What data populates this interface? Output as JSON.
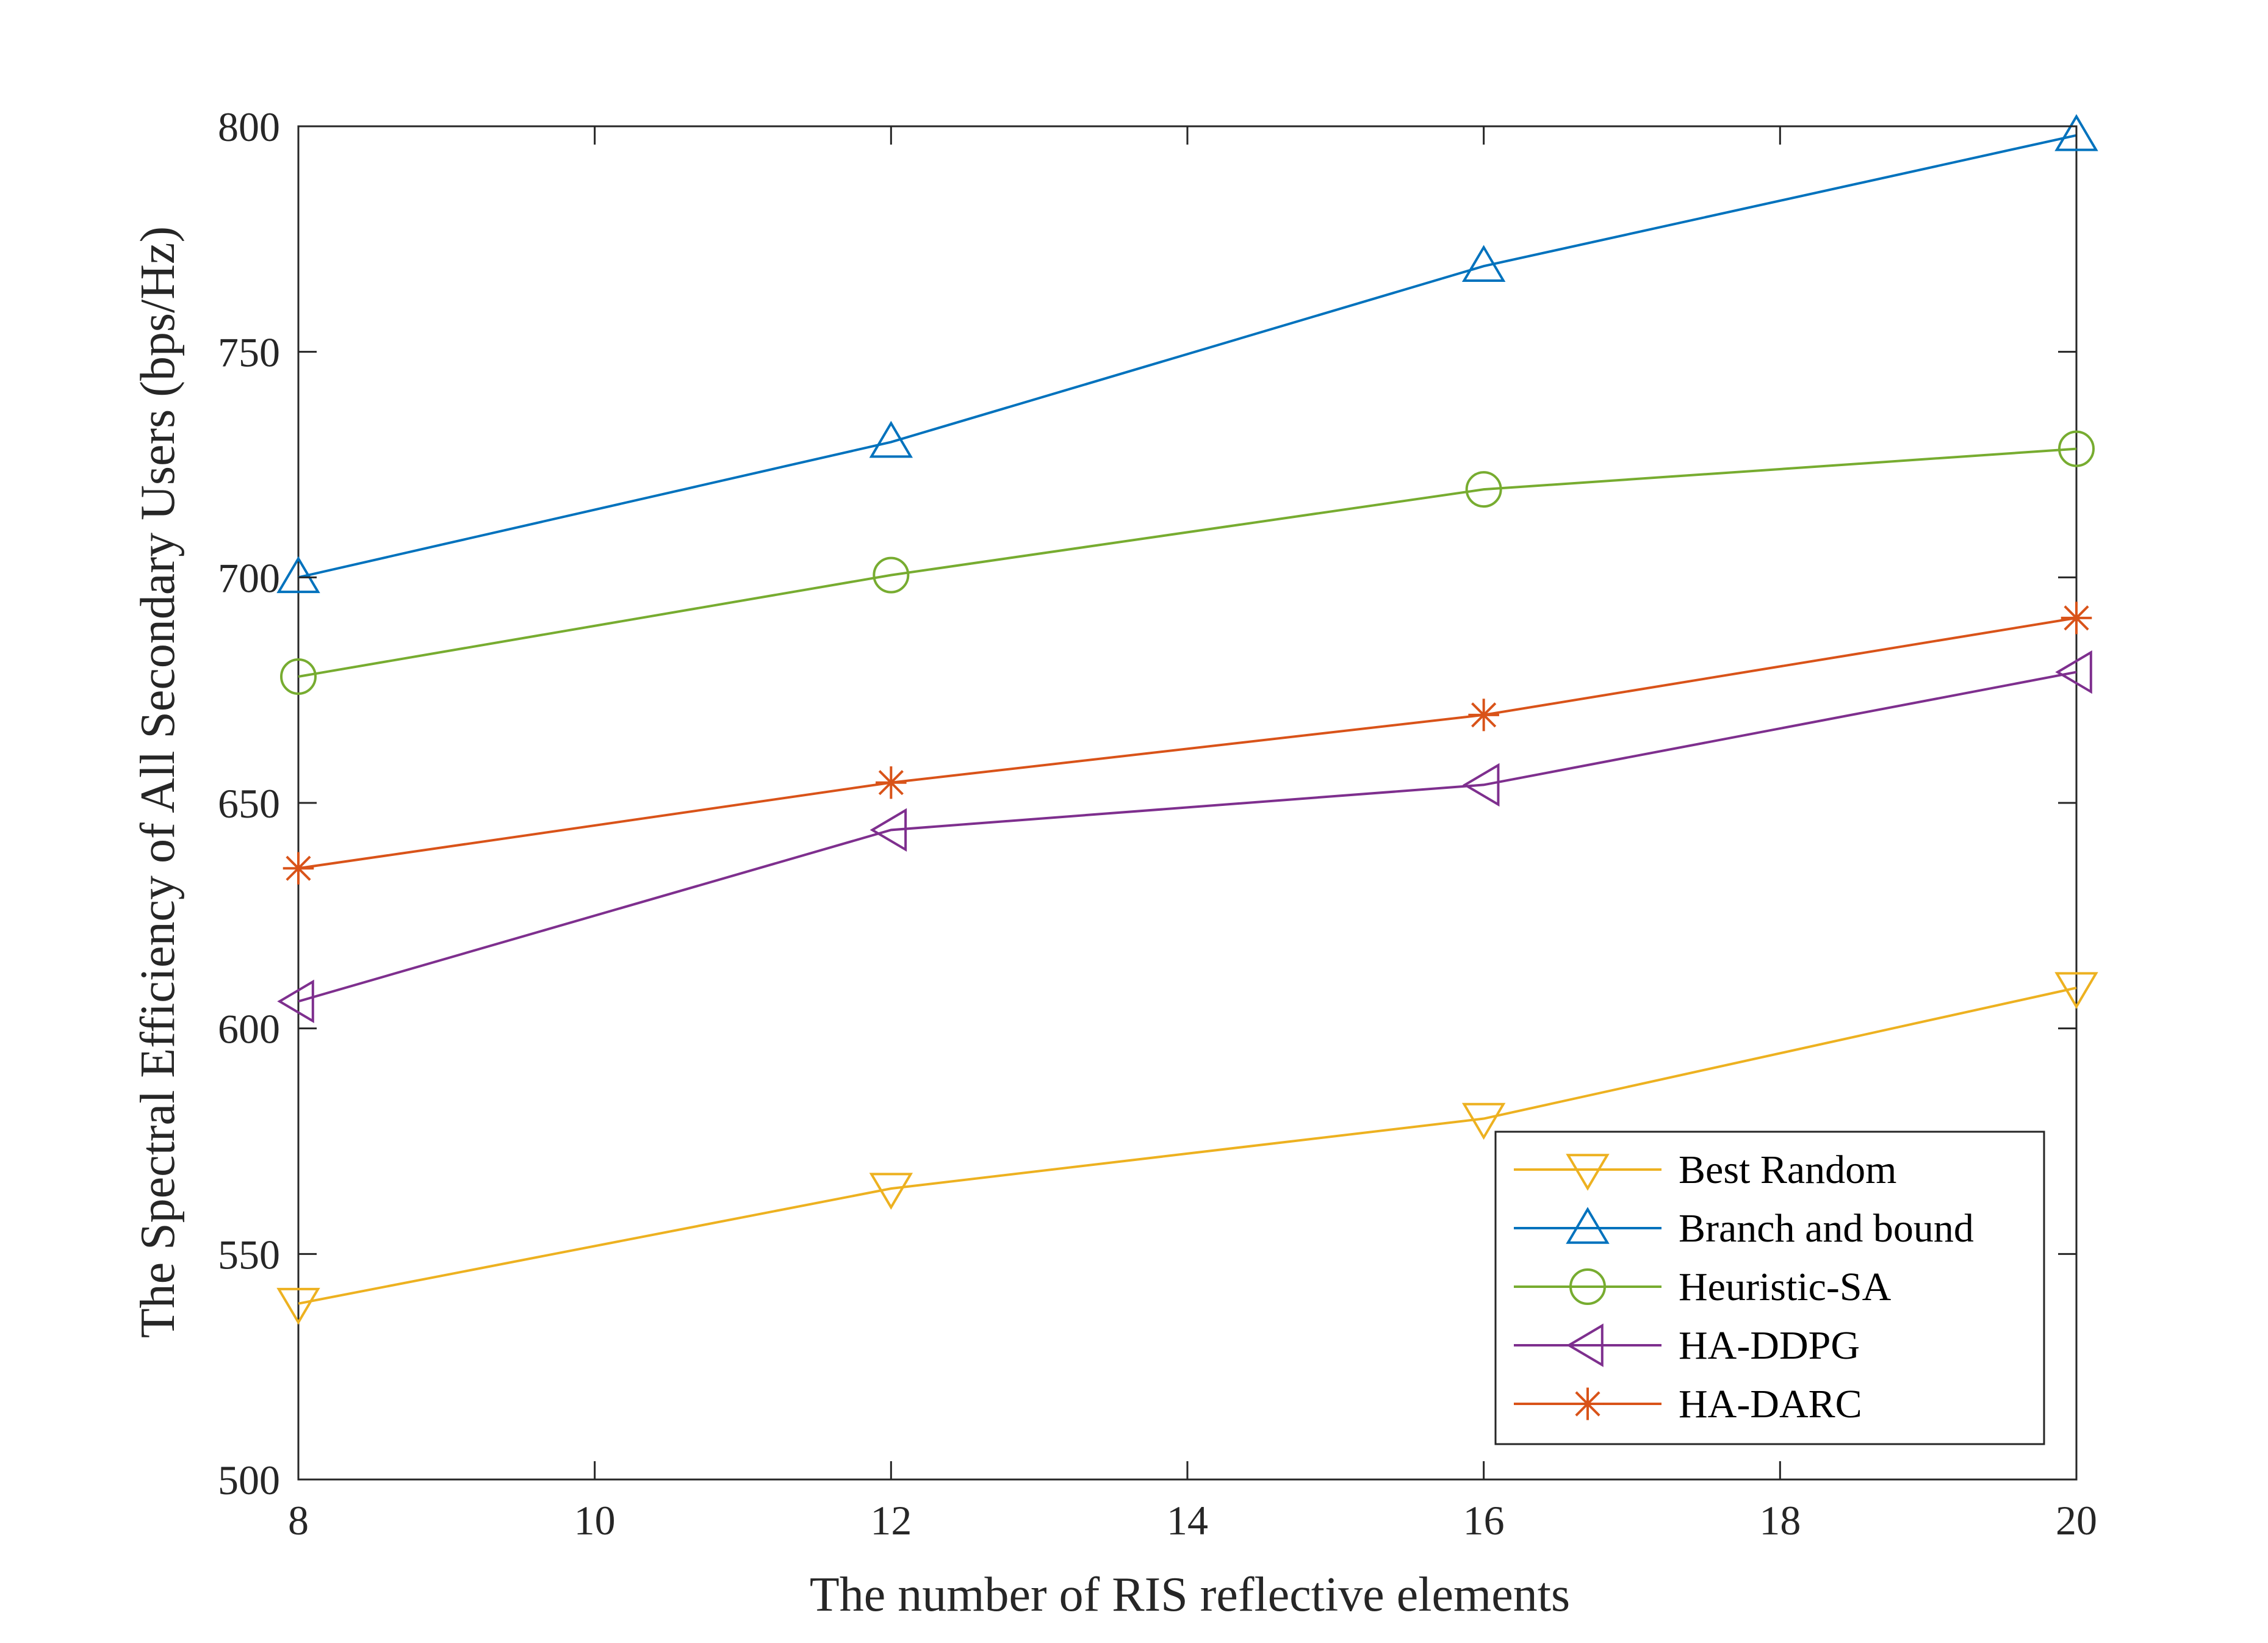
{
  "chart_data": {
    "type": "line",
    "title": "",
    "xlabel": "The number of RIS reflective elements",
    "ylabel": "The Spectral Efficiency of All Secondary Users (bps/Hz)",
    "xlim": [
      8,
      20
    ],
    "ylim": [
      500,
      800
    ],
    "xticks": [
      8,
      10,
      12,
      14,
      16,
      18,
      20
    ],
    "yticks": [
      500,
      550,
      600,
      650,
      700,
      750,
      800
    ],
    "grid": false,
    "legend_position": "bottom-right",
    "x": [
      8,
      12,
      16,
      20
    ],
    "series": [
      {
        "name": "Best Random",
        "marker": "triangle-down",
        "color": "#EDB120",
        "values": [
          539,
          564.5,
          580,
          609
        ]
      },
      {
        "name": "Branch and bound",
        "marker": "triangle-up",
        "color": "#0072BD",
        "values": [
          700,
          730,
          769,
          798
        ]
      },
      {
        "name": "Heuristic-SA",
        "marker": "circle",
        "color": "#77AC30",
        "values": [
          678,
          700.5,
          719.5,
          728.5
        ]
      },
      {
        "name": "HA-DDPG",
        "marker": "triangle-left",
        "color": "#7E2F8E",
        "values": [
          606,
          644,
          654,
          679
        ]
      },
      {
        "name": "HA-DARC",
        "marker": "asterisk",
        "color": "#D95319",
        "values": [
          635.5,
          654.5,
          669.5,
          691
        ]
      }
    ]
  }
}
